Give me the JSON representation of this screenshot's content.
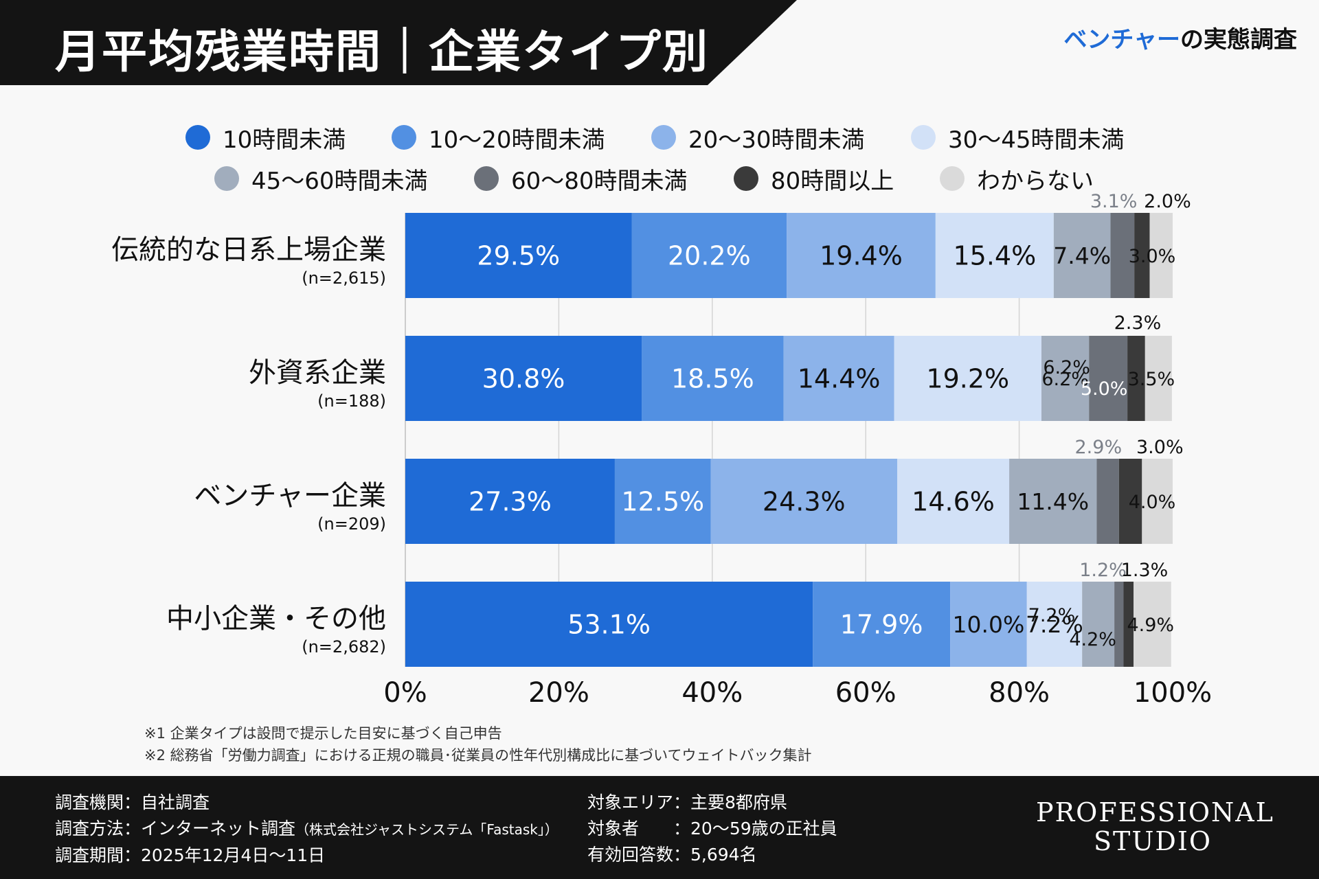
{
  "header": {
    "title": "月平均残業時間｜企業タイプ別",
    "subtitle_accent": "ベンチャー",
    "subtitle_rest": "の実態調査"
  },
  "colors": {
    "under10": "#1f6bd6",
    "h10_20": "#5290e2",
    "h20_30": "#8cb3ea",
    "h30_45": "#d2e1f7",
    "h45_60": "#a1adbd",
    "h60_80": "#6b7079",
    "over80": "#3a3a3a",
    "unknown": "#dadada"
  },
  "chart_data": {
    "type": "bar",
    "orientation": "horizontal-stacked-100",
    "xlim": [
      0,
      100
    ],
    "xticks": [
      "0%",
      "20%",
      "40%",
      "60%",
      "80%",
      "100%"
    ],
    "grid": true,
    "legend": [
      {
        "key": "under10",
        "label": "10時間未満"
      },
      {
        "key": "h10_20",
        "label": "10〜20時間未満"
      },
      {
        "key": "h20_30",
        "label": "20〜30時間未満"
      },
      {
        "key": "h30_45",
        "label": "30〜45時間未満"
      },
      {
        "key": "h45_60",
        "label": "45〜60時間未満"
      },
      {
        "key": "h60_80",
        "label": "60〜80時間未満"
      },
      {
        "key": "over80",
        "label": "80時間以上"
      },
      {
        "key": "unknown",
        "label": "わからない"
      }
    ],
    "categories": [
      {
        "name": "伝統的な日系上場企業",
        "n": "(n=2,615)",
        "values": [
          29.5,
          20.2,
          19.4,
          15.4,
          7.4,
          3.1,
          2.0,
          3.0
        ],
        "labels": [
          "29.5%",
          "20.2%",
          "19.4%",
          "15.4%",
          "7.4%",
          "3.1%",
          "2.0%",
          "3.0%"
        ]
      },
      {
        "name": "外資系企業",
        "n": "(n=188)",
        "values": [
          30.8,
          18.5,
          14.4,
          19.2,
          6.2,
          5.0,
          2.3,
          3.5
        ],
        "labels": [
          "30.8%",
          "18.5%",
          "14.4%",
          "19.2%",
          "6.2%",
          "5.0%",
          "2.3%",
          "3.5%"
        ]
      },
      {
        "name": "ベンチャー企業",
        "n": "(n=209)",
        "values": [
          27.3,
          12.5,
          24.3,
          14.6,
          11.4,
          2.9,
          3.0,
          4.0
        ],
        "labels": [
          "27.3%",
          "12.5%",
          "24.3%",
          "14.6%",
          "11.4%",
          "2.9%",
          "3.0%",
          "4.0%"
        ]
      },
      {
        "name": "中小企業・その他",
        "n": "(n=2,682)",
        "values": [
          53.1,
          17.9,
          10.0,
          7.2,
          4.2,
          1.2,
          1.3,
          4.9
        ],
        "labels": [
          "53.1%",
          "17.9%",
          "10.0%",
          "7.2%",
          "4.2%",
          "1.2%",
          "1.3%",
          "4.9%"
        ]
      }
    ]
  },
  "notes": [
    "※1  企業タイプは設問で提示した目安に基づく自己申告",
    "※2  総務省「労働力調査」における正規の職員･従業員の性年代別構成比に基づいてウェイトバック集計"
  ],
  "footer": {
    "left": [
      {
        "label": "調査機関：",
        "value": "自社調査",
        "small": ""
      },
      {
        "label": "調査方法：",
        "value": "インターネット調査",
        "small": "（株式会社ジャストシステム「Fastask」）"
      },
      {
        "label": "調査期間：",
        "value": "2025年12月4日〜11日",
        "small": ""
      }
    ],
    "right": [
      {
        "label": "対象エリア：",
        "value": "主要8都府県"
      },
      {
        "label": "対象者　　：",
        "value": "20〜59歳の正社員"
      },
      {
        "label": "有効回答数：",
        "value": "5,694名"
      }
    ],
    "brand_line1": "PROFESSIONAL",
    "brand_line2": "STUDIO"
  }
}
